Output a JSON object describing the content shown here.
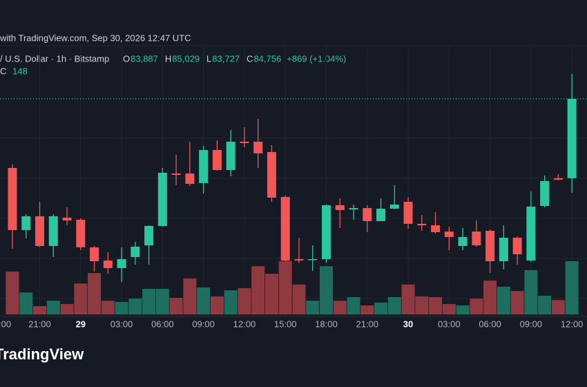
{
  "chart_data": {
    "type": "candlestick",
    "title": "with TradingView.com, Sep 30, 2026 12:47 UTC",
    "symbol": "/ U.S. Dollar · 1h · Bitstamp",
    "ohlc_header": [
      {
        "label": "O",
        "value": 83887,
        "value_label": "83,887"
      },
      {
        "label": "H",
        "value": 85029,
        "value_label": "85,029"
      },
      {
        "label": "L",
        "value": 83727,
        "value_label": "83,727"
      },
      {
        "label": "C",
        "value": 84756,
        "value_label": "84,756"
      }
    ],
    "change_label": "+869 (+1.04%)",
    "volume_header": {
      "label": "C",
      "value": 148
    },
    "brand": "TradingView",
    "x_partial_label": ":00",
    "categories": [
      null,
      null,
      "21:00",
      null,
      null,
      "29",
      null,
      null,
      "03:00",
      null,
      null,
      "06:00",
      null,
      null,
      "09:00",
      null,
      null,
      "12:00",
      null,
      null,
      "15:00",
      null,
      null,
      "18:00",
      null,
      null,
      "21:00",
      null,
      null,
      "30",
      null,
      null,
      "03:00",
      null,
      null,
      "06:00",
      null,
      null,
      "09:00",
      null,
      null,
      "12:00"
    ],
    "open": [
      84000,
      83320,
      83471,
      83146,
      83456,
      83433,
      83131,
      82987,
      82904,
      83025,
      83153,
      83365,
      83939,
      83939,
      83834,
      84196,
      83977,
      84287,
      84287,
      84174,
      83682,
      83002,
      82994,
      83002,
      83592,
      83546,
      83561,
      83418,
      83554,
      83629,
      83388,
      83372,
      83304,
      83146,
      83304,
      83312,
      82979,
      83236,
      82987,
      83584,
      83887,
      83887
    ],
    "high": [
      84038,
      83493,
      83629,
      83493,
      83569,
      83448,
      83146,
      83078,
      83131,
      83191,
      83372,
      84000,
      84144,
      84287,
      84242,
      84302,
      84416,
      84446,
      84537,
      84249,
      83698,
      83236,
      83153,
      83599,
      83667,
      83599,
      83592,
      83667,
      83811,
      83682,
      83486,
      83516,
      83357,
      83342,
      83425,
      83327,
      83372,
      83251,
      83743,
      83917,
      83932,
      85029
    ],
    "low": [
      83115,
      83229,
      83131,
      83025,
      83372,
      83100,
      82866,
      82843,
      82753,
      82942,
      82942,
      83357,
      83811,
      83803,
      83720,
      83970,
      83909,
      84227,
      84000,
      83629,
      82979,
      82957,
      82873,
      82964,
      83342,
      83433,
      83297,
      83418,
      83546,
      83335,
      83312,
      83282,
      83100,
      83100,
      83138,
      82851,
      82889,
      82942,
      82972,
      83569,
      83864,
      83727
    ],
    "close": [
      83320,
      83471,
      83146,
      83471,
      83425,
      83131,
      82979,
      82904,
      83002,
      83138,
      83365,
      83947,
      83924,
      83826,
      84196,
      83977,
      84287,
      84272,
      84159,
      83675,
      82987,
      82987,
      83002,
      83592,
      83539,
      83561,
      83418,
      83554,
      83599,
      83388,
      83372,
      83297,
      83244,
      83244,
      83153,
      82979,
      83236,
      83055,
      83577,
      83856,
      83871,
      84756
    ],
    "volume": [
      119,
      61,
      23,
      38,
      29,
      86,
      115,
      38,
      35,
      44,
      71,
      71,
      46,
      100,
      75,
      50,
      67,
      73,
      134,
      113,
      148,
      83,
      38,
      134,
      38,
      48,
      25,
      33,
      48,
      83,
      50,
      48,
      29,
      25,
      44,
      94,
      77,
      65,
      123,
      52,
      40,
      148
    ],
    "ylim": [
      82359,
      85308
    ],
    "volume_ylim": [
      0,
      288
    ],
    "up_color": "#2bc8a0",
    "down_color": "#f25656",
    "volume_up_color": "#1e6e60",
    "volume_down_color": "#8f3a40"
  }
}
